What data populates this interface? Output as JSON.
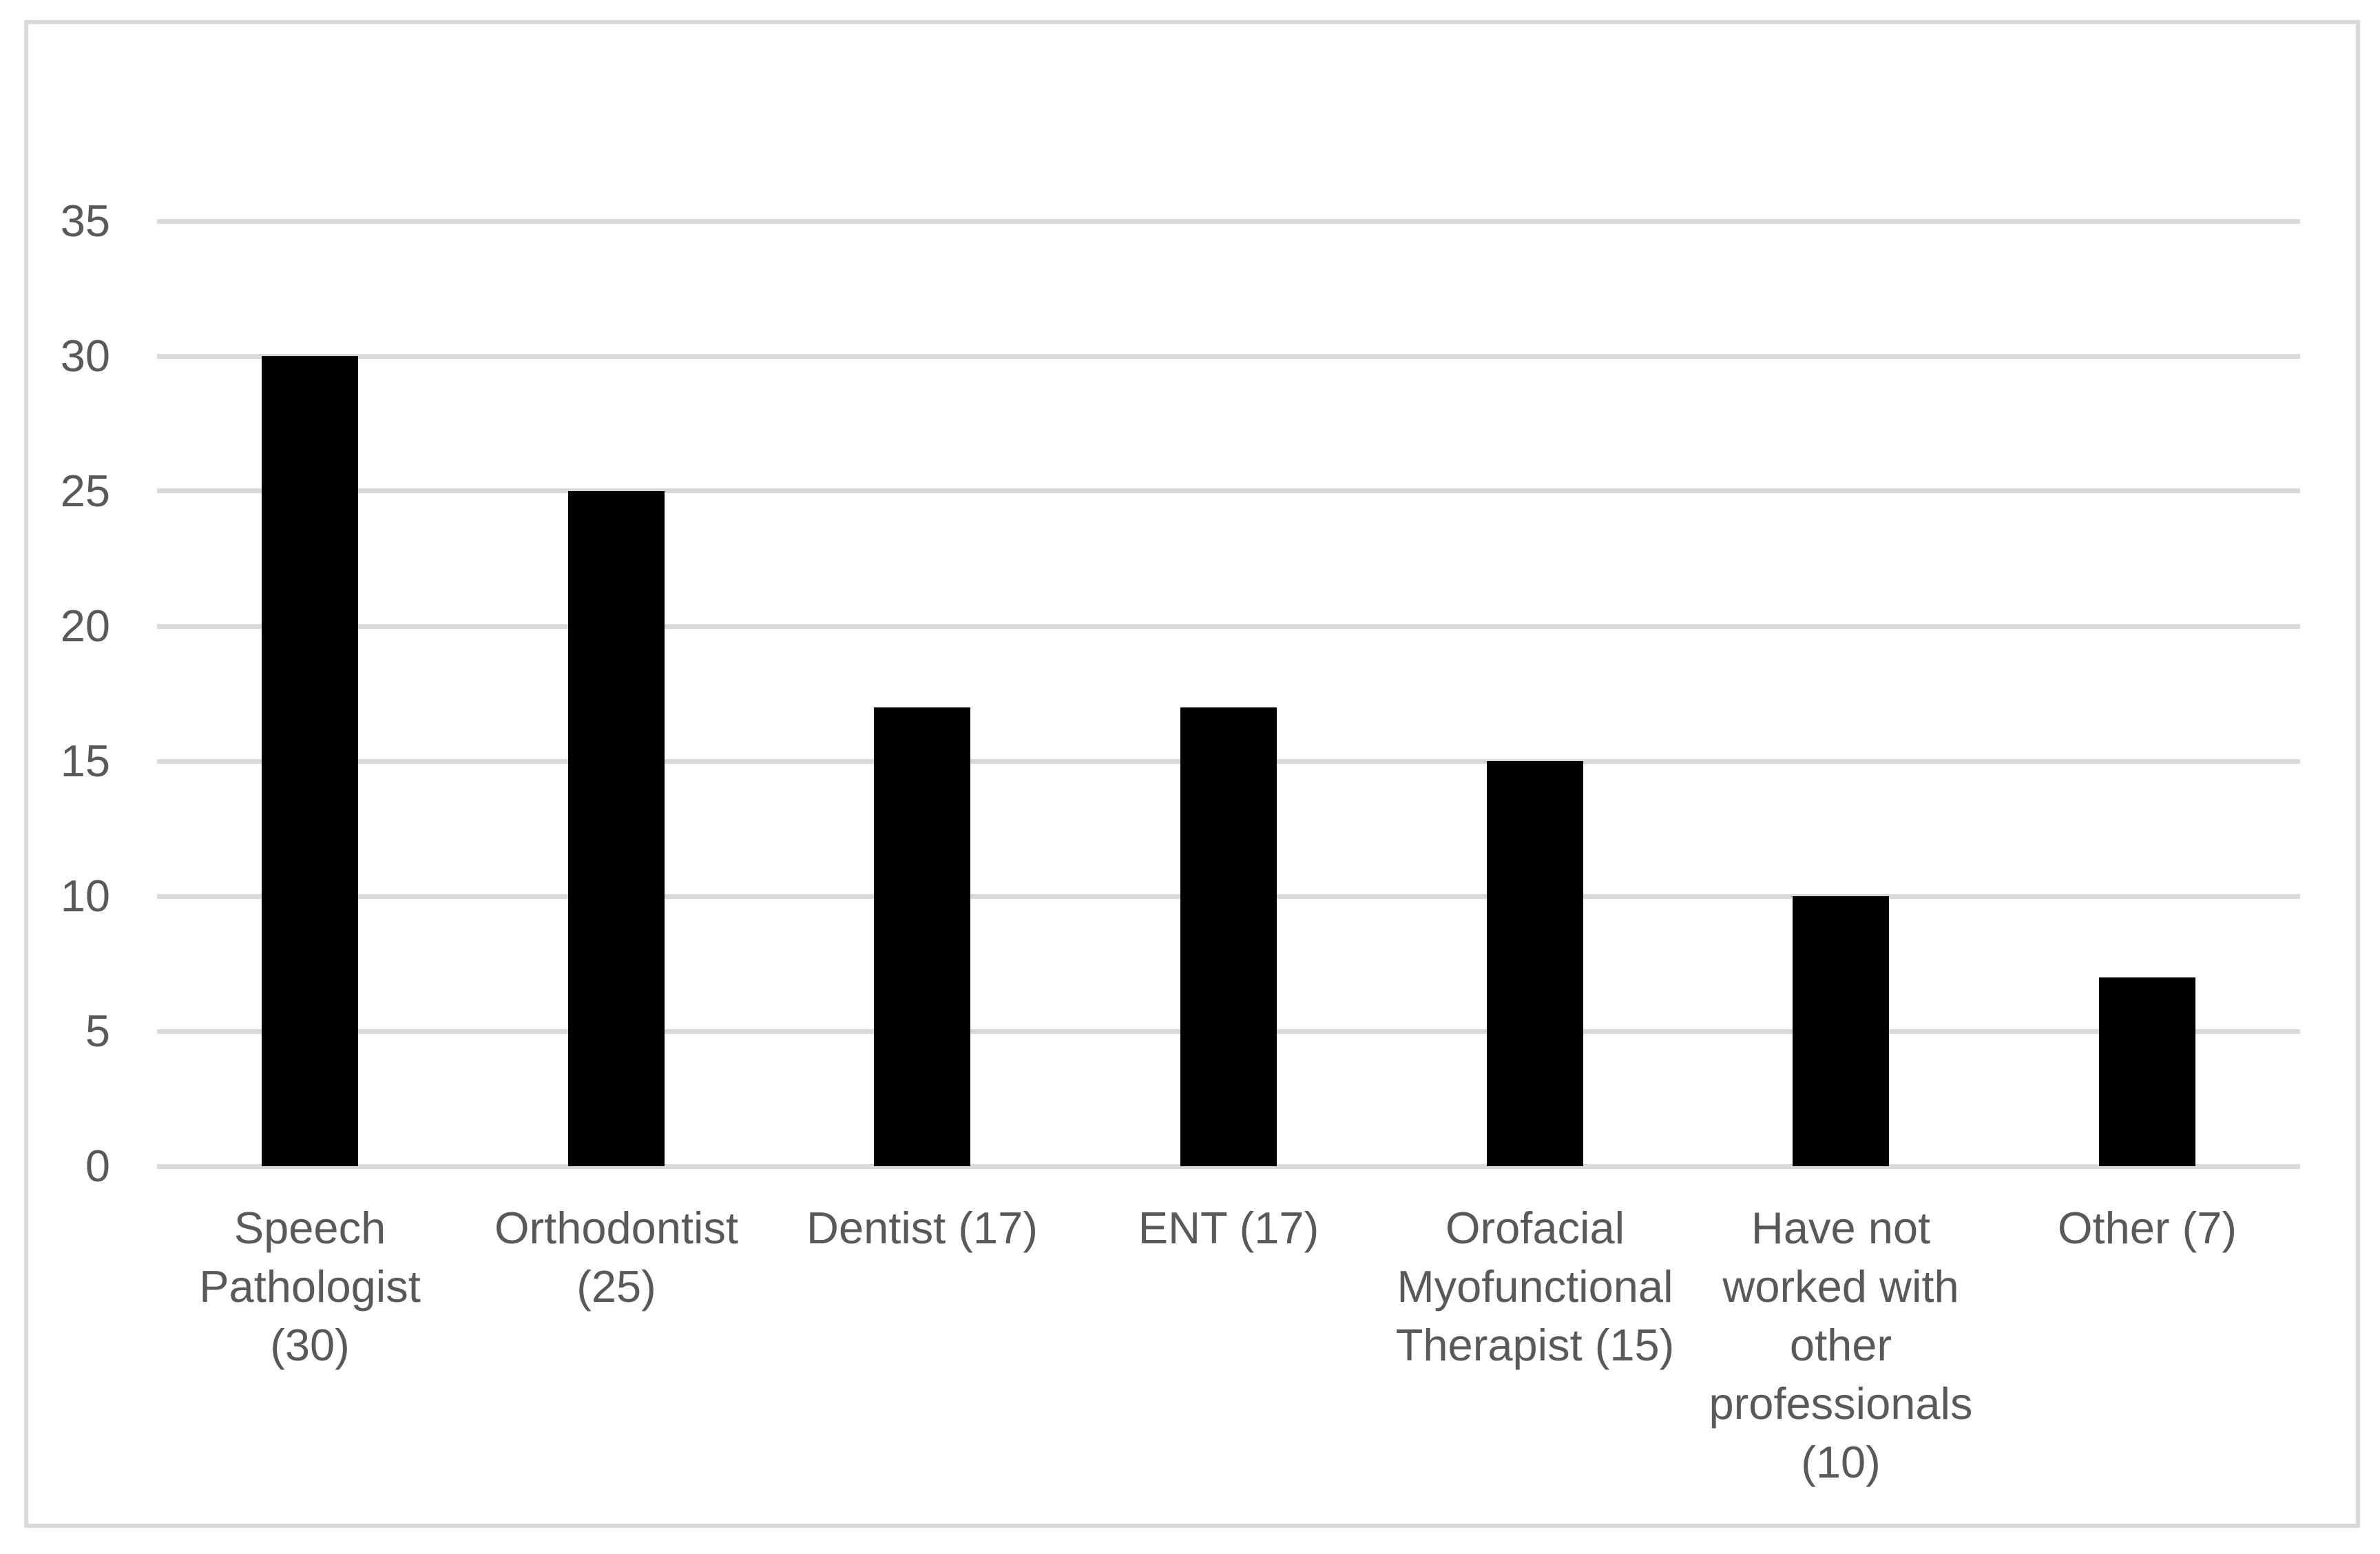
{
  "chart_data": {
    "type": "bar",
    "title": "",
    "xlabel": "",
    "ylabel": "",
    "categories": [
      "Speech Pathologist (30)",
      "Orthodontist (25)",
      "Dentist (17)",
      "ENT (17)",
      "Orofacial Myofunctional Therapist (15)",
      "Have not worked with other professionals (10)",
      "Other (7)"
    ],
    "category_wrap_lines": [
      [
        "Speech",
        "Pathologist",
        "(30)"
      ],
      [
        "Orthodontist",
        "(25)"
      ],
      [
        "Dentist (17)"
      ],
      [
        "ENT (17)"
      ],
      [
        "Orofacial",
        "Myofunctional",
        "Therapist (15)"
      ],
      [
        "Have not",
        "worked with",
        "other",
        "professionals",
        "(10)"
      ],
      [
        "Other (7)"
      ]
    ],
    "values": [
      30,
      25,
      17,
      17,
      15,
      10,
      7
    ],
    "y_ticks": [
      0,
      5,
      10,
      15,
      20,
      25,
      30,
      35
    ],
    "ylim": [
      0,
      35
    ],
    "grid": true,
    "legend": "none",
    "colors": {
      "bar": "#000000",
      "axis_text": "#595959",
      "gridline": "#D9D9D9",
      "frame_border": "#D9D9D9",
      "background": "#FFFFFF"
    }
  }
}
